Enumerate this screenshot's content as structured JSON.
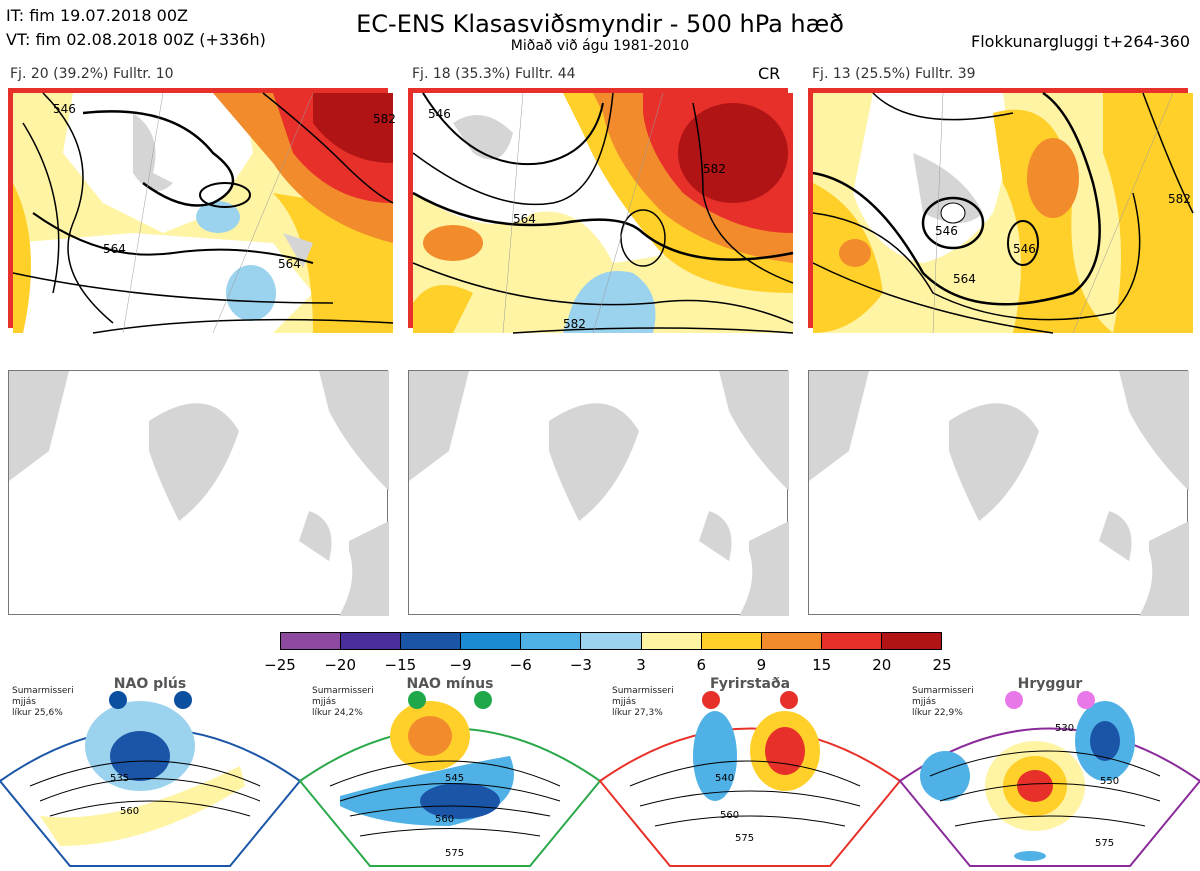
{
  "header": {
    "it_line": "IT: fim 19.07.2018 00Z",
    "vt_line": "VT: fim 02.08.2018 00Z  (+336h)",
    "title": "EC-ENS Klasasviðsmyndir - 500 hPa hæð",
    "subtitle": "Miðað við águ 1981-2010",
    "window": "Flokkunargluggi t+264-360"
  },
  "panels": [
    {
      "label": "Fj. 20 (39.2%)   Fulltr. 10",
      "tag": ""
    },
    {
      "label": "Fj. 18 (35.3%)   Fulltr. 44",
      "tag": "CR"
    },
    {
      "label": "Fj. 13 (25.5%)   Fulltr. 39",
      "tag": ""
    }
  ],
  "contour_labels": {
    "p1": [
      "546",
      "564",
      "564",
      "582"
    ],
    "p2": [
      "546",
      "564",
      "582",
      "582"
    ],
    "p3": [
      "546",
      "546",
      "564",
      "582"
    ]
  },
  "colorbar": {
    "ticks": [
      "−25",
      "−20",
      "−15",
      "−9",
      "−6",
      "−3",
      "3",
      "6",
      "9",
      "15",
      "20",
      "25"
    ],
    "colors": [
      "#8e4a9e",
      "#4a2e9a",
      "#1a55a8",
      "#1b8bd4",
      "#4fb1e6",
      "#9bd3ef",
      "#ffffff",
      "#fff3a4",
      "#ffd02a",
      "#f28b2c",
      "#e8302a",
      "#b01414"
    ]
  },
  "regimes": [
    {
      "name": "NAO plús",
      "note1": "Sumarmisseri",
      "note2": "mjjás",
      "note3": "líkur 25,6%",
      "border": "#1a55a8",
      "dot": "#0a4fa0",
      "labels": [
        "535",
        "560"
      ]
    },
    {
      "name": "NAO mínus",
      "note1": "Sumarmisseri",
      "note2": "mjjás",
      "note3": "líkur 24,2%",
      "border": "#2aa84a",
      "dot": "#1fa84a",
      "labels": [
        "545",
        "560",
        "575"
      ]
    },
    {
      "name": "Fyrirstaða",
      "note1": "Sumarmisseri",
      "note2": "mjjás",
      "note3": "líkur 27,3%",
      "border": "#e8302a",
      "dot": "#e8302a",
      "labels": [
        "540",
        "560",
        "575"
      ]
    },
    {
      "name": "Hryggur",
      "note1": "Sumarmisseri",
      "note2": "mjjás",
      "note3": "líkur 22,9%",
      "border": "#8a2a9a",
      "dot": "#e878e8",
      "labels": [
        "530",
        "550",
        "575"
      ]
    }
  ]
}
